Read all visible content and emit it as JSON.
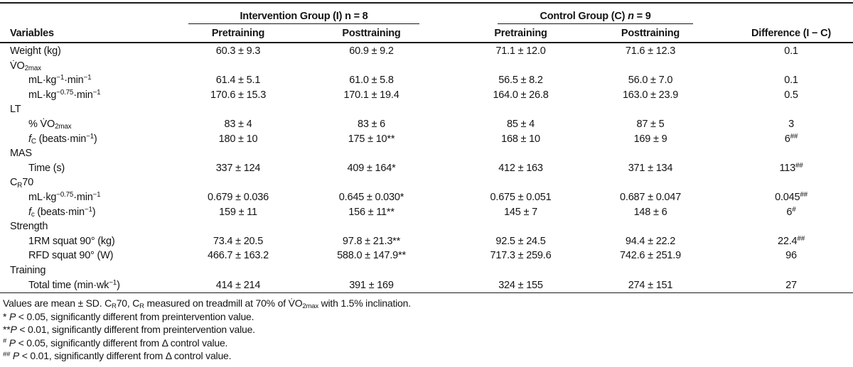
{
  "table": {
    "header": {
      "variables_label": "Variables",
      "groups": [
        {
          "title": "Intervention Group (I) n = 8",
          "sub": [
            "Pretraining",
            "Posttraining"
          ]
        },
        {
          "title": "Control Group (C) @{n} = 9",
          "sub": [
            "Pretraining",
            "Posttraining"
          ]
        }
      ],
      "difference_label": "Difference (I − C)"
    },
    "rows": [
      {
        "label": "Weight (kg)",
        "indent": 0,
        "values": [
          "60.3 ± 9.3",
          "60.9 ± 9.2",
          "71.1 ± 12.0",
          "71.6 ± 12.3",
          "0.1"
        ]
      },
      {
        "label": "V̇O_{2max}",
        "indent": 0,
        "values": [
          "",
          "",
          "",
          "",
          ""
        ]
      },
      {
        "label": "mL·kg^{−1}·min^{−1}",
        "indent": 1,
        "values": [
          "61.4 ± 5.1",
          "61.0 ± 5.8",
          "56.5 ± 8.2",
          "56.0 ± 7.0",
          "0.1"
        ]
      },
      {
        "label": "mL·kg^{−0.75}·min^{−1}",
        "indent": 1,
        "values": [
          "170.6 ± 15.3",
          "170.1 ± 19.4",
          "164.0 ± 26.8",
          "163.0 ± 23.9",
          "0.5"
        ]
      },
      {
        "label": "LT",
        "indent": 0,
        "values": [
          "",
          "",
          "",
          "",
          ""
        ]
      },
      {
        "label": "% V̇O_{2max}",
        "indent": 1,
        "values": [
          "83 ± 4",
          "83 ± 6",
          "85 ± 4",
          "87 ± 5",
          "3"
        ]
      },
      {
        "label": "@{f}_{C} (beats·min^{−1})",
        "indent": 1,
        "values": [
          "180 ± 10",
          "175 ± 10**",
          "168 ± 10",
          "169 ± 9",
          "6^{##}"
        ]
      },
      {
        "label": "MAS",
        "indent": 0,
        "values": [
          "",
          "",
          "",
          "",
          ""
        ]
      },
      {
        "label": "Time (s)",
        "indent": 1,
        "values": [
          "337 ± 124",
          "409 ± 164*",
          "412 ± 163",
          "371 ± 134",
          "113^{##}"
        ]
      },
      {
        "label": "C_{R}70",
        "indent": 0,
        "values": [
          "",
          "",
          "",
          "",
          ""
        ]
      },
      {
        "label": "mL·kg^{−0.75}·min^{−1}",
        "indent": 1,
        "values": [
          "0.679 ± 0.036",
          "0.645 ± 0.030*",
          "0.675 ± 0.051",
          "0.687 ± 0.047",
          "0.045^{##}"
        ]
      },
      {
        "label": "@{f}_{c} (beats·min^{−1})",
        "indent": 1,
        "values": [
          "159 ± 11",
          "156 ± 11**",
          "145 ± 7",
          "148 ± 6",
          "6^{#}"
        ]
      },
      {
        "label": "Strength",
        "indent": 0,
        "values": [
          "",
          "",
          "",
          "",
          ""
        ]
      },
      {
        "label": "1RM squat 90° (kg)",
        "indent": 1,
        "values": [
          "73.4 ± 20.5",
          "97.8 ± 21.3**",
          "92.5 ± 24.5",
          "94.4 ± 22.2",
          "22.4^{##}"
        ]
      },
      {
        "label": "RFD squat 90° (W)",
        "indent": 1,
        "values": [
          "466.7 ± 163.2",
          "588.0 ± 147.9**",
          "717.3 ± 259.6",
          "742.6 ± 251.9",
          "96"
        ]
      },
      {
        "label": "Training",
        "indent": 0,
        "values": [
          "",
          "",
          "",
          "",
          ""
        ]
      },
      {
        "label": "Total time (min·wk^{−1})",
        "indent": 1,
        "values": [
          "414 ± 214",
          "391 ± 169",
          "324 ± 155",
          "274 ± 151",
          "27"
        ]
      }
    ]
  },
  "footnotes": [
    "Values are mean ± SD. C_{R}70, C_{R} measured on treadmill at 70% of V̇O_{2max} with 1.5% inclination.",
    "* @{P} < 0.05, significantly different from preintervention value.",
    "**@{P} < 0.01, significantly different from preintervention value.",
    "^{#} @{P} < 0.05, significantly different from Δ control value.",
    "^{##} @{P} < 0.01, significantly different from Δ control value."
  ]
}
